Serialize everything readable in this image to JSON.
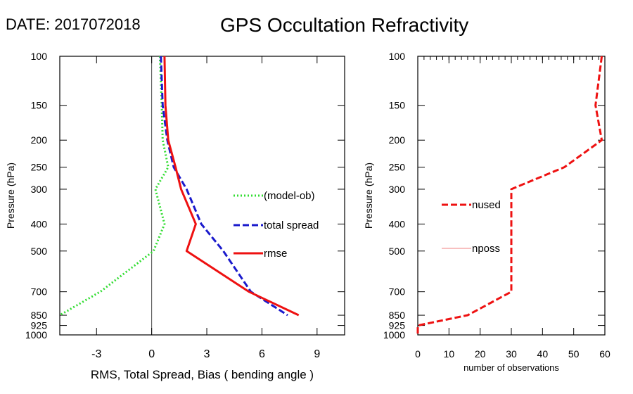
{
  "header": {
    "date_label": "DATE: 2017072018",
    "title": "GPS Occultation Refractivity"
  },
  "chart_data": [
    {
      "type": "line",
      "xlabel": "RMS, Total Spread, Bias ( bending angle )",
      "ylabel": "Pressure (hPa)",
      "xlim": [
        -5,
        10.5
      ],
      "ylim": [
        1000,
        100
      ],
      "yscale": "log",
      "xticks": [
        "-3",
        "0",
        "3",
        "6",
        "9"
      ],
      "xtick_values": [
        -3,
        0,
        3,
        6,
        9
      ],
      "yticks": [
        "100",
        "150",
        "200",
        "250",
        "300",
        "400",
        "500",
        "700",
        "850",
        "925",
        "1000"
      ],
      "ytick_values": [
        100,
        150,
        200,
        250,
        300,
        400,
        500,
        700,
        850,
        925,
        1000
      ],
      "zero_line": 0,
      "series": [
        {
          "name": "(model-ob)",
          "color": "#33dd33",
          "style": "dotted",
          "points": [
            [
              0.45,
              100
            ],
            [
              0.55,
              150
            ],
            [
              0.6,
              200
            ],
            [
              0.9,
              250
            ],
            [
              0.2,
              300
            ],
            [
              0.7,
              400
            ],
            [
              0.1,
              500
            ],
            [
              -2.8,
              700
            ],
            [
              -5.0,
              850
            ]
          ]
        },
        {
          "name": "total spread",
          "color": "#1a1acc",
          "style": "dashed",
          "points": [
            [
              0.5,
              100
            ],
            [
              0.6,
              150
            ],
            [
              0.85,
              200
            ],
            [
              1.2,
              250
            ],
            [
              1.9,
              300
            ],
            [
              2.7,
              400
            ],
            [
              3.9,
              500
            ],
            [
              5.4,
              700
            ],
            [
              7.4,
              850
            ]
          ]
        },
        {
          "name": "rmse",
          "color": "#ee1111",
          "style": "solid",
          "points": [
            [
              0.7,
              100
            ],
            [
              0.75,
              150
            ],
            [
              0.9,
              200
            ],
            [
              1.3,
              250
            ],
            [
              1.6,
              300
            ],
            [
              2.4,
              400
            ],
            [
              1.9,
              500
            ],
            [
              5.3,
              700
            ],
            [
              8.0,
              850
            ]
          ]
        }
      ]
    },
    {
      "type": "line",
      "xlabel": "number of observations",
      "ylabel": "Pressure (hPa)",
      "xlim": [
        0,
        60
      ],
      "ylim": [
        1000,
        100
      ],
      "yscale": "log",
      "xticks": [
        "0",
        "10",
        "20",
        "30",
        "40",
        "50",
        "60"
      ],
      "xtick_values": [
        0,
        10,
        20,
        30,
        40,
        50,
        60
      ],
      "yticks": [
        "100",
        "150",
        "200",
        "250",
        "300",
        "400",
        "500",
        "700",
        "850",
        "925",
        "1000"
      ],
      "ytick_values": [
        100,
        150,
        200,
        250,
        300,
        400,
        500,
        700,
        850,
        925,
        1000
      ],
      "series": [
        {
          "name": "nused",
          "color": "#ee1111",
          "style": "dashed",
          "points": [
            [
              59,
              100
            ],
            [
              57,
              150
            ],
            [
              59,
              200
            ],
            [
              47,
              250
            ],
            [
              30,
              300
            ],
            [
              30,
              400
            ],
            [
              30,
              500
            ],
            [
              30,
              700
            ],
            [
              16,
              850
            ],
            [
              0,
              925
            ],
            [
              0,
              1000
            ]
          ]
        },
        {
          "name": "nposs",
          "color": "#f08080",
          "style": "solid-thin",
          "points": [
            [
              60,
              100
            ]
          ]
        }
      ]
    }
  ]
}
